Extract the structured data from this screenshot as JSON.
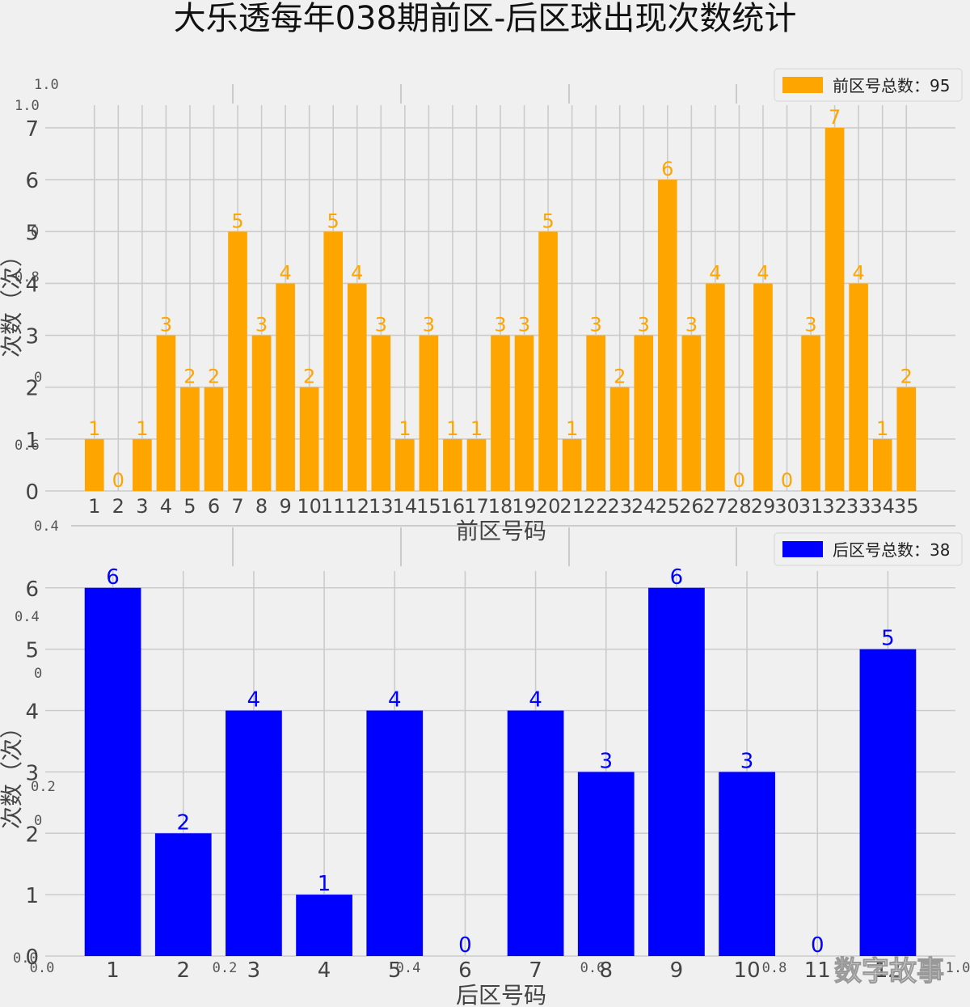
{
  "title": "大乐透每年038期前区-后区球出现次数统计",
  "watermark": "数字故事",
  "ghost_axis_labels": {
    "top_y": [
      "1.0",
      "1.0",
      "0",
      "0.8",
      "0",
      "0.6",
      "0.4"
    ],
    "bottom_y": [
      "0.4",
      "0",
      "0.2",
      "0",
      "0.0"
    ],
    "bottom_x": [
      "0.0",
      "0.2",
      "0.4",
      "0.6",
      "0.8",
      "1.0"
    ]
  },
  "colors": {
    "front": "#ffa500",
    "back": "#0000ff",
    "background": "#f0f0f0",
    "grid": "#cbcbcb"
  },
  "chart_data": [
    {
      "type": "bar",
      "categories": [
        "1",
        "2",
        "3",
        "4",
        "5",
        "6",
        "7",
        "8",
        "9",
        "10",
        "11",
        "12",
        "13",
        "14",
        "15",
        "16",
        "17",
        "18",
        "19",
        "20",
        "21",
        "22",
        "23",
        "24",
        "25",
        "26",
        "27",
        "28",
        "29",
        "30",
        "31",
        "32",
        "33",
        "34",
        "35"
      ],
      "values": [
        1,
        0,
        1,
        3,
        2,
        2,
        5,
        3,
        4,
        2,
        5,
        4,
        3,
        1,
        3,
        1,
        1,
        3,
        3,
        5,
        1,
        3,
        2,
        3,
        6,
        3,
        4,
        0,
        4,
        0,
        3,
        7,
        4,
        1,
        2
      ],
      "series": [
        {
          "name": "前区号总数：95"
        }
      ],
      "xlabel": "前区号码",
      "ylabel": "次数（次）",
      "yticks": [
        "0",
        "1",
        "2",
        "3",
        "4",
        "5",
        "6",
        "7"
      ],
      "ylim": [
        0,
        7.25
      ],
      "grid": true,
      "legend": "top-right"
    },
    {
      "type": "bar",
      "categories": [
        "1",
        "2",
        "3",
        "4",
        "5",
        "6",
        "7",
        "8",
        "9",
        "10",
        "11",
        "12"
      ],
      "values": [
        6,
        2,
        4,
        1,
        4,
        0,
        4,
        3,
        6,
        3,
        0,
        5
      ],
      "series": [
        {
          "name": "后区号总数：38"
        }
      ],
      "xlabel": "后区号码",
      "ylabel": "次数（次）",
      "yticks": [
        "0",
        "1",
        "2",
        "3",
        "4",
        "5",
        "6"
      ],
      "ylim": [
        0,
        6.3
      ],
      "grid": true,
      "legend": "top-right"
    }
  ]
}
